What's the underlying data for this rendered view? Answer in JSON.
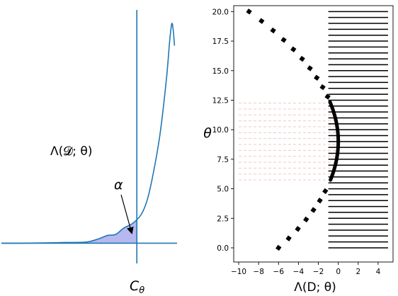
{
  "chart_data": [
    {
      "type": "line",
      "panel": "left",
      "annotations": {
        "curve_label": "Λ(𝓓; θ)",
        "alpha_label": "α",
        "threshold_label": "C",
        "threshold_subscript": "θ"
      },
      "series": [
        {
          "values": [
            [
              0,
              0
            ],
            [
              1,
              0
            ],
            [
              2,
              0.001
            ],
            [
              3,
              0.003
            ],
            [
              4,
              0.005
            ],
            [
              4.6,
              0.02
            ],
            [
              5,
              0.035
            ],
            [
              5.4,
              0.04
            ],
            [
              5.8,
              0.07
            ],
            [
              6.2,
              0.09
            ],
            [
              6.6,
              0.13
            ],
            [
              6.9,
              0.2
            ],
            [
              7.2,
              0.33
            ],
            [
              7.5,
              0.5
            ],
            [
              7.8,
              0.75
            ],
            [
              7.95,
              0.92
            ],
            [
              8.05,
              1.0
            ],
            [
              8.12,
              0.97
            ],
            [
              8.18,
              0.9
            ]
          ],
          "color": "#1f77b4"
        }
      ],
      "threshold_x": 6.4,
      "xlim": [
        0,
        8.3
      ],
      "ylim": [
        -0.06,
        1.05
      ],
      "shaded_region": "area under curve left of threshold (alpha)",
      "shade_color": "#b8b8f0",
      "axes_visible": false
    },
    {
      "type": "scatter",
      "panel": "right",
      "xlabel": "Λ(D; θ)",
      "ylabel": "θ",
      "xlim": [
        -10.5,
        5.5
      ],
      "ylim": [
        20.5,
        -1.2
      ],
      "xticks": [
        "−10",
        "−8",
        "−6",
        "−4",
        "−2",
        "0",
        "2",
        "4"
      ],
      "yticks": [
        "0.0",
        "2.5",
        "5.0",
        "7.5",
        "10.0",
        "12.5",
        "15.0",
        "17.5",
        "20.0"
      ],
      "threshold": -1.0,
      "accepted_range": [
        5.75,
        12.35
      ],
      "curve_color": "#000000",
      "accepted_color": "#ee2222",
      "guide_color": "#f4c6c6",
      "hline_x_range": [
        -1.0,
        5.0
      ],
      "hline_spacing": 0.5,
      "curve_theta_step": 0.8
    }
  ]
}
